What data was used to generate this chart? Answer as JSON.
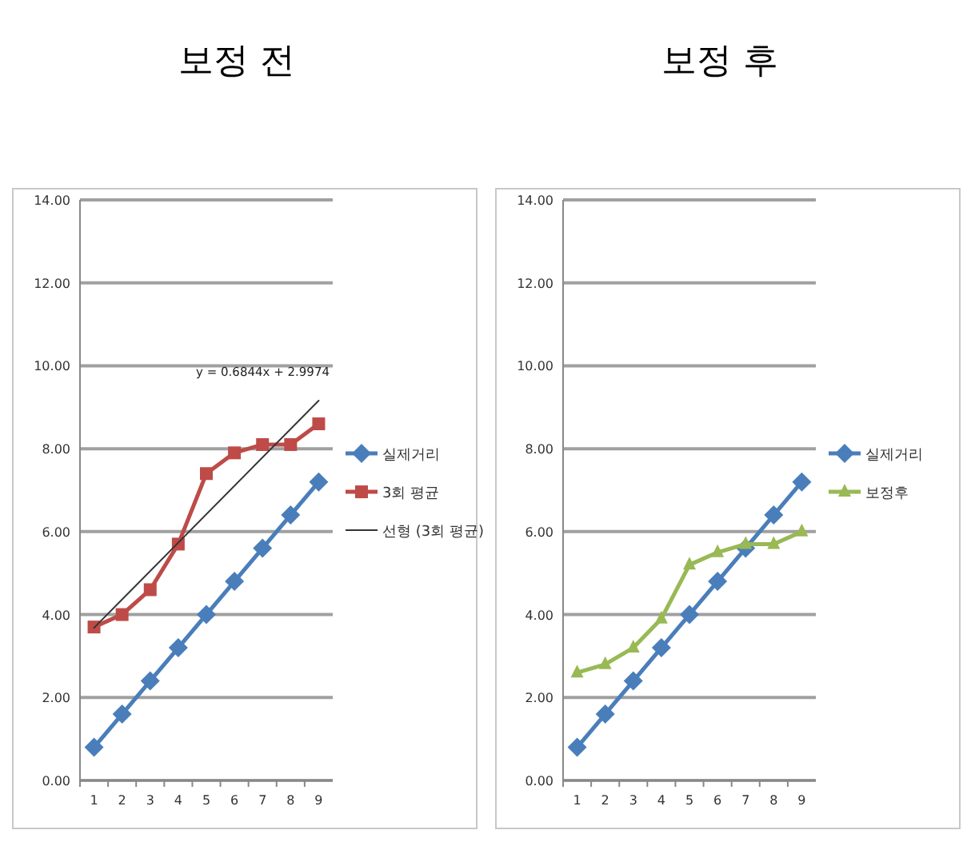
{
  "chart_data": [
    {
      "type": "line",
      "title": "보정 전",
      "categories": [
        "1",
        "2",
        "3",
        "4",
        "5",
        "6",
        "7",
        "8",
        "9"
      ],
      "ylim": [
        0,
        14
      ],
      "yticks": [
        {
          "value": 0,
          "label": "0.00"
        },
        {
          "value": 2,
          "label": "2.00"
        },
        {
          "value": 4,
          "label": "4.00"
        },
        {
          "value": 6,
          "label": "6.00"
        },
        {
          "value": 8,
          "label": "8.00"
        },
        {
          "value": 10,
          "label": "10.00"
        },
        {
          "value": 12,
          "label": "12.00"
        },
        {
          "value": 14,
          "label": "14.00"
        }
      ],
      "grid": "y",
      "legend": "right",
      "annotations": [
        "y = 0.6844x + 2.9974"
      ],
      "series": [
        {
          "name": "실제거리",
          "color": "#4a7ebb",
          "marker": "diamond",
          "values": [
            0.8,
            1.6,
            2.4,
            3.2,
            4.0,
            4.8,
            5.6,
            6.4,
            7.2
          ]
        },
        {
          "name": "3회 평균",
          "color": "#be4b48",
          "marker": "square",
          "values": [
            3.7,
            4.0,
            4.6,
            5.7,
            7.4,
            7.9,
            8.1,
            8.1,
            8.6
          ]
        },
        {
          "name": "선형 (3회 평균)",
          "color": "#333333",
          "marker": "none",
          "x": [
            "1",
            "9"
          ],
          "values": [
            3.68,
            9.16
          ]
        }
      ]
    },
    {
      "type": "line",
      "title": "보정 후",
      "categories": [
        "1",
        "2",
        "3",
        "4",
        "5",
        "6",
        "7",
        "8",
        "9"
      ],
      "ylim": [
        0,
        14
      ],
      "yticks": [
        {
          "value": 0,
          "label": "0.00"
        },
        {
          "value": 2,
          "label": "2.00"
        },
        {
          "value": 4,
          "label": "4.00"
        },
        {
          "value": 6,
          "label": "6.00"
        },
        {
          "value": 8,
          "label": "8.00"
        },
        {
          "value": 10,
          "label": "10.00"
        },
        {
          "value": 12,
          "label": "12.00"
        },
        {
          "value": 14,
          "label": "14.00"
        }
      ],
      "grid": "y",
      "legend": "right",
      "series": [
        {
          "name": "실제거리",
          "color": "#4a7ebb",
          "marker": "diamond",
          "values": [
            0.8,
            1.6,
            2.4,
            3.2,
            4.0,
            4.8,
            5.6,
            6.4,
            7.2
          ]
        },
        {
          "name": "보정후",
          "color": "#98b954",
          "marker": "triangle",
          "values": [
            2.6,
            2.8,
            3.2,
            3.9,
            5.2,
            5.5,
            5.7,
            5.7,
            6.0
          ]
        }
      ]
    }
  ]
}
